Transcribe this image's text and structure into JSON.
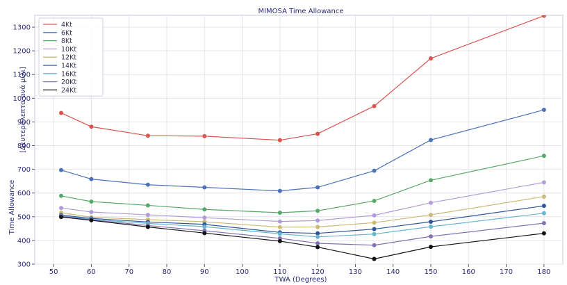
{
  "chart_data": {
    "type": "line",
    "title": "MIMOSA Time Allowance",
    "xlabel": "TWA (Degrees)",
    "ylabel": "Time Allowance",
    "ylabel_unit": "[Δευτερόλεπτα ανά μίλι]",
    "xlim": [
      45,
      185
    ],
    "ylim": [
      300,
      1350
    ],
    "xticks": [
      50,
      60,
      70,
      80,
      90,
      100,
      110,
      120,
      130,
      140,
      150,
      160,
      170,
      180
    ],
    "yticks": [
      300,
      400,
      500,
      600,
      700,
      800,
      900,
      1000,
      1100,
      1200,
      1300
    ],
    "grid": true,
    "legend_position": "top-left",
    "x": [
      52,
      60,
      75,
      90,
      110,
      120,
      135,
      150,
      180
    ],
    "series": [
      {
        "name": "4Kt",
        "color": "#d9534f",
        "values": [
          938,
          880,
          842,
          840,
          823,
          850,
          967,
          1168,
          1348
        ]
      },
      {
        "name": "6Kt",
        "color": "#4a72b8",
        "values": [
          697,
          659,
          635,
          624,
          609,
          624,
          694,
          824,
          951
        ]
      },
      {
        "name": "8Kt",
        "color": "#55a868",
        "values": [
          588,
          564,
          548,
          531,
          517,
          525,
          567,
          654,
          757
        ]
      },
      {
        "name": "10Kt",
        "color": "#b19cd9",
        "values": [
          537,
          520,
          508,
          496,
          480,
          484,
          506,
          559,
          645
        ]
      },
      {
        "name": "12Kt",
        "color": "#ccb974",
        "values": [
          517,
          498,
          488,
          479,
          456,
          457,
          475,
          508,
          585
        ]
      },
      {
        "name": "14Kt",
        "color": "#2f5597",
        "values": [
          507,
          493,
          478,
          468,
          434,
          430,
          448,
          479,
          546
        ]
      },
      {
        "name": "16Kt",
        "color": "#64b5cd",
        "values": [
          504,
          489,
          472,
          458,
          428,
          415,
          427,
          458,
          515
        ]
      },
      {
        "name": "20Kt",
        "color": "#8172b3",
        "values": [
          502,
          487,
          463,
          441,
          409,
          388,
          380,
          417,
          473
        ]
      },
      {
        "name": "24Kt",
        "color": "#111111",
        "values": [
          499,
          485,
          457,
          431,
          397,
          372,
          322,
          373,
          430
        ]
      }
    ]
  }
}
